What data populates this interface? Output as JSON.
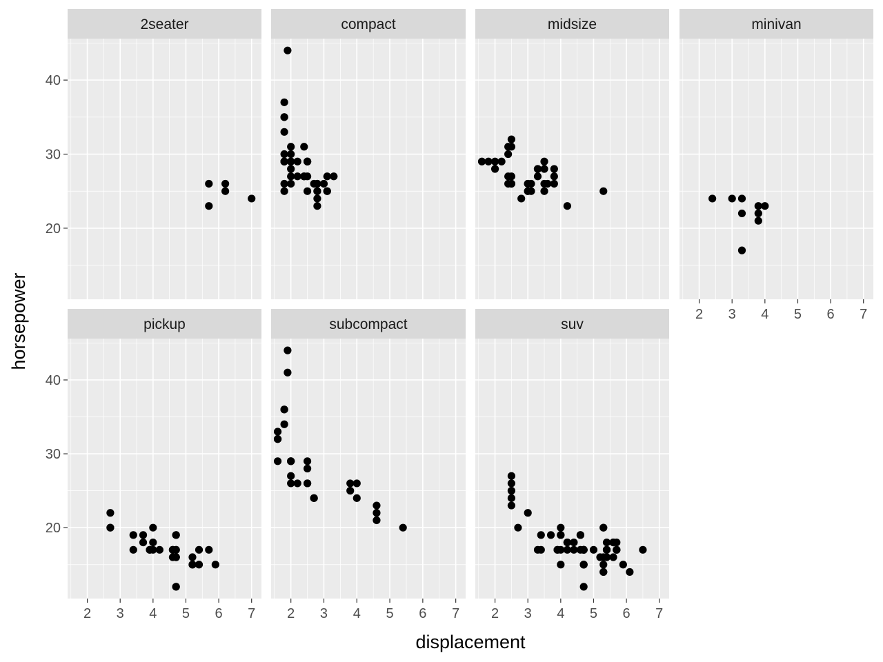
{
  "chart_data": {
    "type": "scatter",
    "facet_by": "class",
    "xlabel": "displacement",
    "ylabel": "horsepower",
    "xlim": [
      1.4,
      7.3
    ],
    "ylim": [
      10.4,
      45.6
    ],
    "x_ticks": [
      2,
      3,
      4,
      5,
      6,
      7
    ],
    "y_ticks": [
      20,
      30,
      40
    ],
    "x_tick_labels": [
      "2",
      "3",
      "4",
      "5",
      "6",
      "7"
    ],
    "y_tick_labels": [
      "20",
      "30",
      "40"
    ],
    "grid": true,
    "point_color": "#000000",
    "panel_background": "#ebebeb",
    "strip_background": "#d9d9d9",
    "panels": [
      {
        "name": "2seater",
        "points": [
          [
            5.7,
            26
          ],
          [
            5.7,
            23
          ],
          [
            6.2,
            26
          ],
          [
            6.2,
            25
          ],
          [
            7.0,
            24
          ]
        ]
      },
      {
        "name": "compact",
        "points": [
          [
            1.8,
            29
          ],
          [
            1.8,
            29
          ],
          [
            2.0,
            31
          ],
          [
            2.0,
            30
          ],
          [
            2.8,
            26
          ],
          [
            2.8,
            26
          ],
          [
            3.1,
            27
          ],
          [
            1.8,
            26
          ],
          [
            1.8,
            25
          ],
          [
            2.0,
            28
          ],
          [
            2.0,
            27
          ],
          [
            2.8,
            25
          ],
          [
            2.8,
            25
          ],
          [
            3.1,
            25
          ],
          [
            3.1,
            25
          ],
          [
            1.9,
            44
          ],
          [
            2.0,
            29
          ],
          [
            2.0,
            26
          ],
          [
            2.0,
            29
          ],
          [
            2.0,
            29
          ],
          [
            2.5,
            29
          ],
          [
            2.5,
            29
          ],
          [
            2.8,
            23
          ],
          [
            2.8,
            24
          ],
          [
            1.8,
            37
          ],
          [
            1.8,
            35
          ],
          [
            1.8,
            29
          ],
          [
            2.4,
            31
          ],
          [
            2.4,
            27
          ],
          [
            2.5,
            27
          ],
          [
            2.5,
            29
          ],
          [
            2.2,
            27
          ],
          [
            2.2,
            29
          ],
          [
            2.4,
            27
          ],
          [
            2.5,
            25
          ],
          [
            3.0,
            26
          ],
          [
            3.3,
            27
          ],
          [
            2.7,
            26
          ],
          [
            1.8,
            33
          ],
          [
            1.8,
            35
          ],
          [
            1.8,
            30
          ]
        ]
      },
      {
        "name": "midsize",
        "points": [
          [
            2.8,
            24
          ],
          [
            3.1,
            25
          ],
          [
            4.2,
            23
          ],
          [
            2.4,
            30
          ],
          [
            2.4,
            31
          ],
          [
            3.1,
            26
          ],
          [
            3.5,
            29
          ],
          [
            3.6,
            26
          ],
          [
            1.6,
            29
          ],
          [
            2.0,
            28
          ],
          [
            2.0,
            29
          ],
          [
            2.5,
            27
          ],
          [
            2.5,
            26
          ],
          [
            3.0,
            26
          ],
          [
            3.0,
            25
          ],
          [
            3.5,
            25
          ],
          [
            3.3,
            28
          ],
          [
            3.3,
            27
          ],
          [
            3.8,
            28
          ],
          [
            3.8,
            27
          ],
          [
            2.5,
            32
          ],
          [
            2.5,
            31
          ],
          [
            2.4,
            27
          ],
          [
            3.5,
            26
          ],
          [
            3.5,
            28
          ],
          [
            1.8,
            29
          ],
          [
            2.2,
            29
          ],
          [
            2.4,
            26
          ],
          [
            3.0,
            26
          ],
          [
            3.0,
            25
          ],
          [
            3.3,
            28
          ],
          [
            5.3,
            25
          ],
          [
            3.8,
            26
          ],
          [
            2.5,
            26
          ]
        ]
      },
      {
        "name": "minivan",
        "points": [
          [
            2.4,
            24
          ],
          [
            3.0,
            24
          ],
          [
            3.3,
            22
          ],
          [
            3.3,
            24
          ],
          [
            3.3,
            17
          ],
          [
            3.8,
            22
          ],
          [
            3.8,
            21
          ],
          [
            3.8,
            23
          ],
          [
            4.0,
            23
          ]
        ]
      },
      {
        "name": "pickup",
        "points": [
          [
            3.7,
            19
          ],
          [
            3.7,
            18
          ],
          [
            3.9,
            17
          ],
          [
            3.9,
            17
          ],
          [
            4.7,
            16
          ],
          [
            4.7,
            12
          ],
          [
            4.7,
            17
          ],
          [
            5.2,
            15
          ],
          [
            5.7,
            17
          ],
          [
            5.9,
            15
          ],
          [
            4.7,
            17
          ],
          [
            4.7,
            12
          ],
          [
            4.7,
            16
          ],
          [
            4.7,
            16
          ],
          [
            5.2,
            16
          ],
          [
            5.2,
            15
          ],
          [
            4.6,
            17
          ],
          [
            4.6,
            17
          ],
          [
            4.6,
            16
          ],
          [
            5.4,
            17
          ],
          [
            5.4,
            15
          ],
          [
            2.7,
            20
          ],
          [
            2.7,
            20
          ],
          [
            2.7,
            22
          ],
          [
            3.4,
            17
          ],
          [
            3.4,
            19
          ],
          [
            4.0,
            18
          ],
          [
            4.0,
            20
          ],
          [
            4.0,
            17
          ],
          [
            4.2,
            17
          ],
          [
            4.7,
            19
          ],
          [
            4.7,
            19
          ],
          [
            4.7,
            16
          ]
        ]
      },
      {
        "name": "subcompact",
        "points": [
          [
            3.8,
            26
          ],
          [
            3.8,
            25
          ],
          [
            4.0,
            26
          ],
          [
            4.0,
            24
          ],
          [
            4.6,
            21
          ],
          [
            4.6,
            22
          ],
          [
            4.6,
            23
          ],
          [
            5.4,
            20
          ],
          [
            1.6,
            33
          ],
          [
            1.6,
            32
          ],
          [
            1.6,
            32
          ],
          [
            1.6,
            29
          ],
          [
            1.6,
            32
          ],
          [
            1.8,
            34
          ],
          [
            1.8,
            36
          ],
          [
            1.8,
            36
          ],
          [
            2.0,
            29
          ],
          [
            2.0,
            26
          ],
          [
            2.0,
            29
          ],
          [
            2.2,
            26
          ],
          [
            2.5,
            28
          ],
          [
            2.5,
            29
          ],
          [
            2.5,
            26
          ],
          [
            2.7,
            24
          ],
          [
            2.7,
            24
          ],
          [
            1.9,
            44
          ],
          [
            1.9,
            41
          ],
          [
            2.0,
            27
          ],
          [
            2.0,
            29
          ],
          [
            2.5,
            26
          ]
        ]
      },
      {
        "name": "suv",
        "points": [
          [
            5.3,
            20
          ],
          [
            5.3,
            15
          ],
          [
            5.3,
            20
          ],
          [
            5.7,
            17
          ],
          [
            6.5,
            17
          ],
          [
            3.7,
            19
          ],
          [
            3.9,
            17
          ],
          [
            3.9,
            17
          ],
          [
            4.7,
            15
          ],
          [
            4.7,
            15
          ],
          [
            5.2,
            16
          ],
          [
            5.7,
            18
          ],
          [
            5.9,
            15
          ],
          [
            4.7,
            12
          ],
          [
            4.7,
            17
          ],
          [
            4.7,
            17
          ],
          [
            4.0,
            19
          ],
          [
            4.0,
            17
          ],
          [
            4.0,
            20
          ],
          [
            4.0,
            15
          ],
          [
            4.2,
            18
          ],
          [
            4.6,
            17
          ],
          [
            4.6,
            19
          ],
          [
            5.0,
            17
          ],
          [
            5.4,
            17
          ],
          [
            5.4,
            18
          ],
          [
            4.6,
            19
          ],
          [
            5.4,
            17
          ],
          [
            5.4,
            16
          ],
          [
            5.4,
            17
          ],
          [
            2.5,
            24
          ],
          [
            2.5,
            26
          ],
          [
            2.5,
            25
          ],
          [
            2.5,
            27
          ],
          [
            2.5,
            23
          ],
          [
            2.7,
            20
          ],
          [
            3.0,
            22
          ],
          [
            3.3,
            17
          ],
          [
            3.4,
            17
          ],
          [
            3.4,
            19
          ],
          [
            4.4,
            18
          ],
          [
            4.4,
            17
          ],
          [
            5.6,
            18
          ],
          [
            5.6,
            16
          ],
          [
            5.6,
            18
          ],
          [
            5.3,
            14
          ],
          [
            6.1,
            14
          ],
          [
            4.2,
            17
          ],
          [
            4.7,
            17
          ],
          [
            4.0,
            19
          ],
          [
            4.2,
            18
          ],
          [
            5.7,
            17
          ],
          [
            5.7,
            17
          ],
          [
            5.3,
            16
          ],
          [
            5.3,
            14
          ],
          [
            4.7,
            17
          ],
          [
            4.7,
            15
          ]
        ]
      }
    ]
  }
}
